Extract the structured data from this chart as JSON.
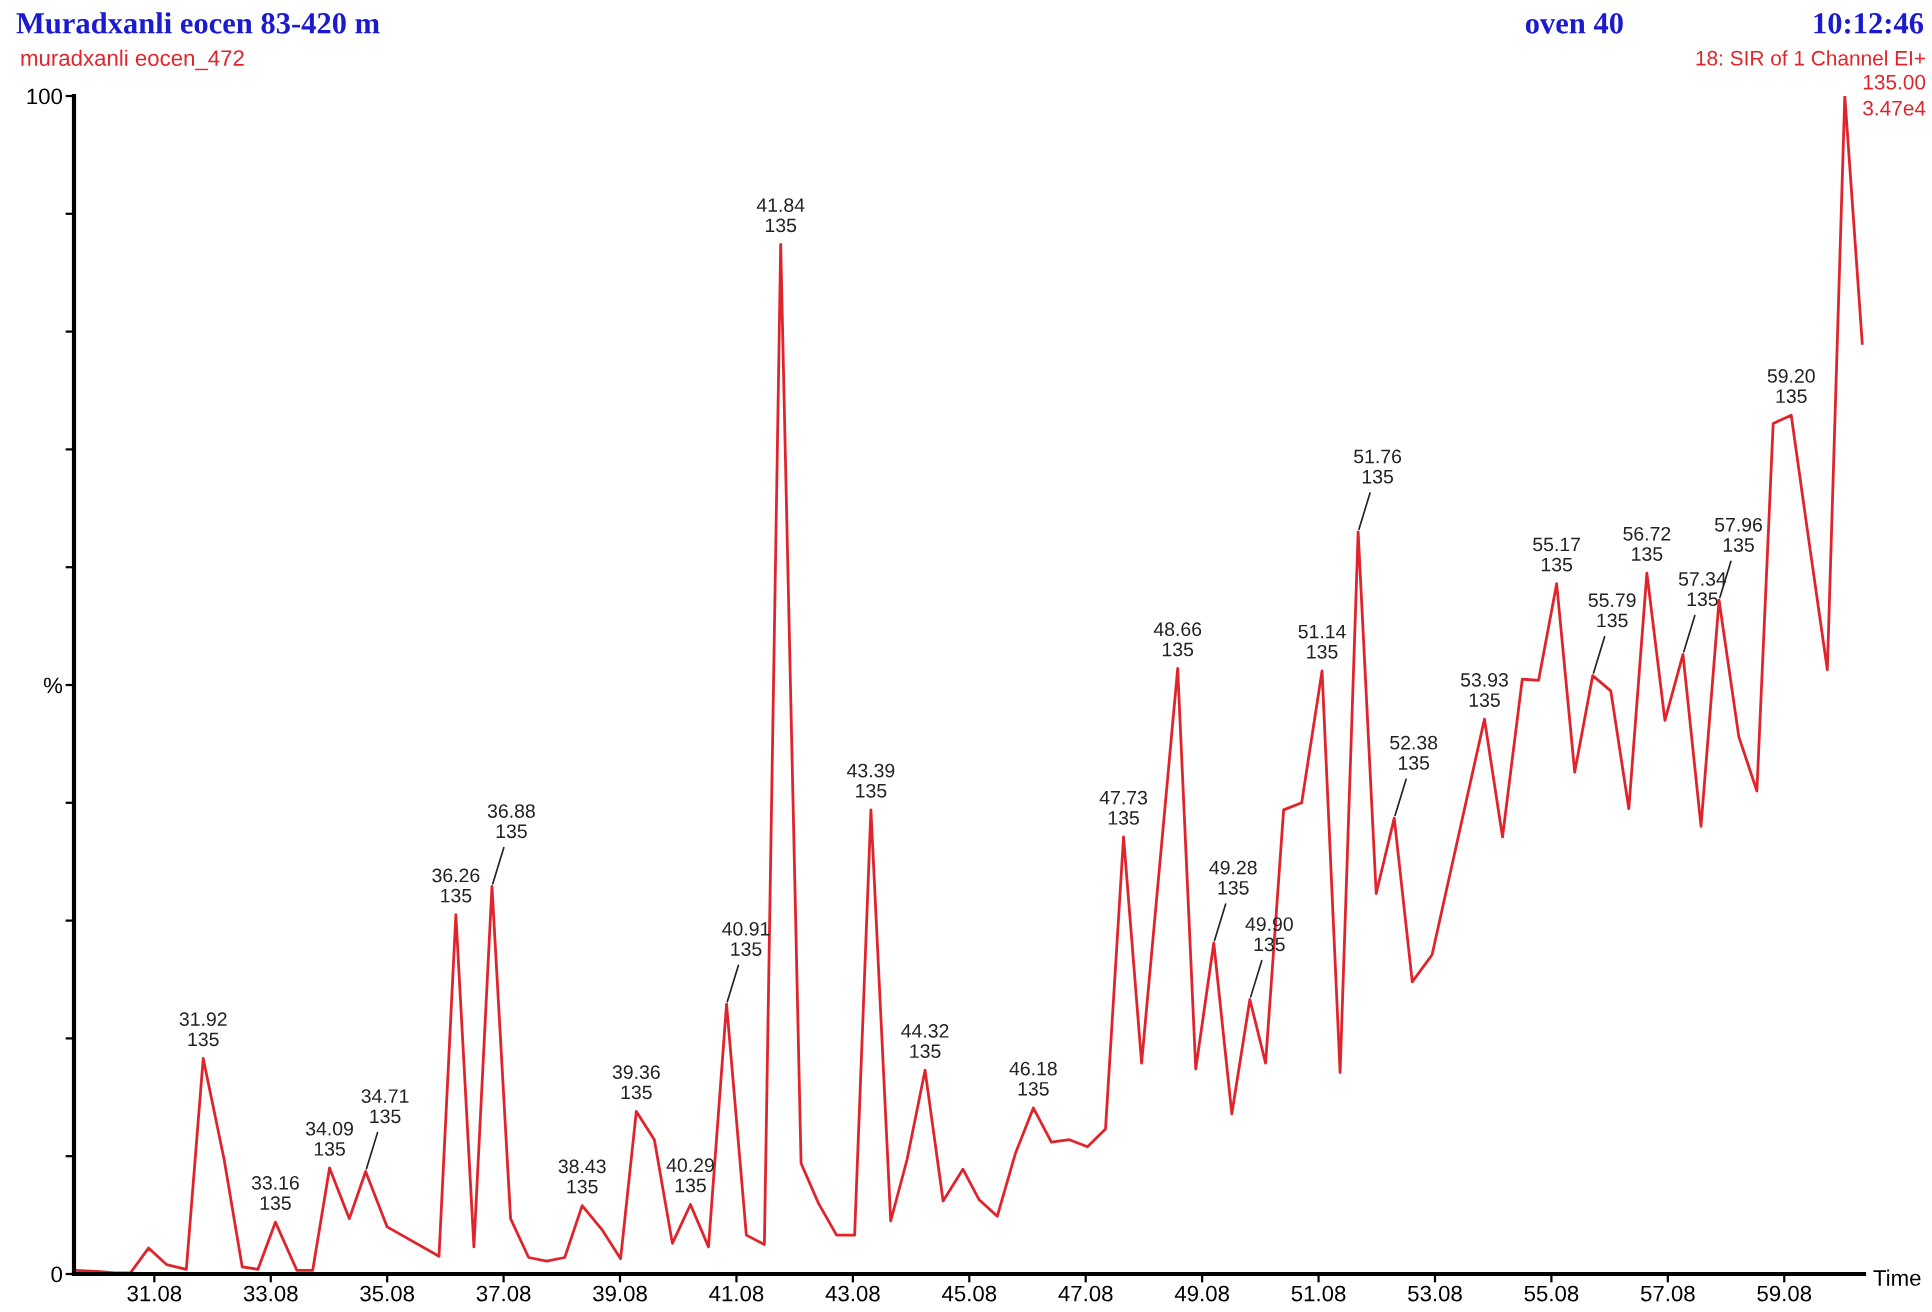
{
  "chart_data": {
    "type": "line",
    "title": "Muradxanli eocen 83-420 m",
    "subtitle": "muradxanli eocen_472",
    "xlabel": "Time",
    "annotations": [
      "oven 40",
      "10:12:46",
      "18: SIR of 1 Channel EI+",
      "135.00",
      "3.47e4",
      {
        "text": "31.92\n135",
        "x": 31.92,
        "y": 18.3
      },
      {
        "text": "33.16\n135",
        "x": 33.16,
        "y": 4.4
      },
      {
        "text": "34.09\n135",
        "x": 34.09,
        "y": 9.0
      },
      {
        "text": "34.71\n135",
        "x": 34.71,
        "y": 8.7
      },
      {
        "text": "36.26\n135",
        "x": 36.26,
        "y": 30.5
      },
      {
        "text": "36.88\n135",
        "x": 36.88,
        "y": 32.9
      },
      {
        "text": "38.43\n135",
        "x": 38.43,
        "y": 5.8
      },
      {
        "text": "39.36\n135",
        "x": 39.36,
        "y": 13.8
      },
      {
        "text": "40.29\n135",
        "x": 40.29,
        "y": 5.9
      },
      {
        "text": "40.91\n135",
        "x": 40.91,
        "y": 22.9
      },
      {
        "text": "41.84\n135",
        "x": 41.84,
        "y": 87.4
      },
      {
        "text": "43.39\n135",
        "x": 43.39,
        "y": 39.4
      },
      {
        "text": "44.32\n135",
        "x": 44.32,
        "y": 17.3
      },
      {
        "text": "46.18\n135",
        "x": 46.18,
        "y": 14.1
      },
      {
        "text": "47.73\n135",
        "x": 47.73,
        "y": 37.1
      },
      {
        "text": "48.66\n135",
        "x": 48.66,
        "y": 51.4
      },
      {
        "text": "49.28\n135",
        "x": 49.28,
        "y": 28.1
      },
      {
        "text": "49.90\n135",
        "x": 49.9,
        "y": 23.3
      },
      {
        "text": "51.14\n135",
        "x": 51.14,
        "y": 51.2
      },
      {
        "text": "51.76\n135",
        "x": 51.76,
        "y": 63.0
      },
      {
        "text": "52.38\n135",
        "x": 52.38,
        "y": 38.7
      },
      {
        "text": "53.93\n135",
        "x": 53.93,
        "y": 47.1
      },
      {
        "text": "55.17\n135",
        "x": 55.17,
        "y": 58.6
      },
      {
        "text": "55.79\n135",
        "x": 55.79,
        "y": 50.8
      },
      {
        "text": "56.72\n135",
        "x": 56.72,
        "y": 59.5
      },
      {
        "text": "57.34\n135",
        "x": 57.34,
        "y": 52.6
      },
      {
        "text": "57.96\n135",
        "x": 57.96,
        "y": 57.2
      },
      {
        "text": "59.20\n135",
        "x": 59.2,
        "y": 72.9
      }
    ],
    "series": [
      {
        "color": "#e0242c",
        "x": [
          29.74,
          30.15,
          30.39,
          30.67,
          30.98,
          31.29,
          31.63,
          31.92,
          32.28,
          32.59,
          32.86,
          33.16,
          33.53,
          33.8,
          34.09,
          34.43,
          34.71,
          35.08,
          35.97,
          36.26,
          36.57,
          36.88,
          37.2,
          37.51,
          37.82,
          38.13,
          38.43,
          38.78,
          39.09,
          39.36,
          39.67,
          39.98,
          40.29,
          40.6,
          40.91,
          41.25,
          41.56,
          41.84,
          42.19,
          42.49,
          42.8,
          43.11,
          43.39,
          43.73,
          44.01,
          44.32,
          44.63,
          44.97,
          45.25,
          45.56,
          45.87,
          46.18,
          46.49,
          46.8,
          47.11,
          47.42,
          47.73,
          48.04,
          48.66,
          48.97,
          49.28,
          49.59,
          49.9,
          50.17,
          50.48,
          50.79,
          51.14,
          51.45,
          51.76,
          52.07,
          52.38,
          52.69,
          53.03,
          53.34,
          53.93,
          54.24,
          54.58,
          54.86,
          55.17,
          55.48,
          55.79,
          56.1,
          56.41,
          56.72,
          57.03,
          57.34,
          57.65,
          57.96,
          58.3,
          58.61,
          58.89,
          59.2,
          59.51,
          59.82,
          60.12,
          60.42
        ],
        "values": [
          0.3,
          0.2,
          0.1,
          0.1,
          2.2,
          0.8,
          0.4,
          18.3,
          9.7,
          0.6,
          0.4,
          4.4,
          0.3,
          0.3,
          9.0,
          4.7,
          8.7,
          4.0,
          1.5,
          30.5,
          2.3,
          32.9,
          4.7,
          1.4,
          1.1,
          1.4,
          5.8,
          3.7,
          1.3,
          13.8,
          11.4,
          2.6,
          5.9,
          2.3,
          22.9,
          3.3,
          2.5,
          87.4,
          9.4,
          6.0,
          3.3,
          3.3,
          39.4,
          4.5,
          9.7,
          17.3,
          6.2,
          8.9,
          6.3,
          4.9,
          10.2,
          14.1,
          11.2,
          11.4,
          10.8,
          12.3,
          37.1,
          17.9,
          51.4,
          17.4,
          28.1,
          13.6,
          23.3,
          17.9,
          39.4,
          40.0,
          51.2,
          17.1,
          63.0,
          32.3,
          38.7,
          24.8,
          27.1,
          34.0,
          47.1,
          37.1,
          50.5,
          50.4,
          58.6,
          42.6,
          50.8,
          49.5,
          39.5,
          59.5,
          47.0,
          52.6,
          38.0,
          57.2,
          45.6,
          41.0,
          72.2,
          72.9,
          62.0,
          51.3,
          100,
          79.0
        ]
      }
    ],
    "xlim": [
      29.7,
      60.45
    ],
    "ylim": [
      0,
      100
    ],
    "xticks": [
      31.08,
      33.08,
      35.08,
      37.08,
      39.08,
      41.08,
      43.08,
      45.08,
      47.08,
      49.08,
      51.08,
      53.08,
      55.08,
      57.08,
      59.08
    ],
    "yticks": [
      0,
      {
        "value": 10,
        "label": null
      },
      {
        "value": 20,
        "label": null
      },
      {
        "value": 30,
        "label": null
      },
      {
        "value": 40,
        "label": null
      },
      {
        "value": 50,
        "label": "%"
      },
      {
        "value": 60,
        "label": null
      },
      {
        "value": 70,
        "label": null
      },
      {
        "value": 80,
        "label": null
      },
      {
        "value": 90,
        "label": null
      },
      100
    ],
    "grid": false,
    "legend": false,
    "marker": "none",
    "line_style": "solid"
  }
}
